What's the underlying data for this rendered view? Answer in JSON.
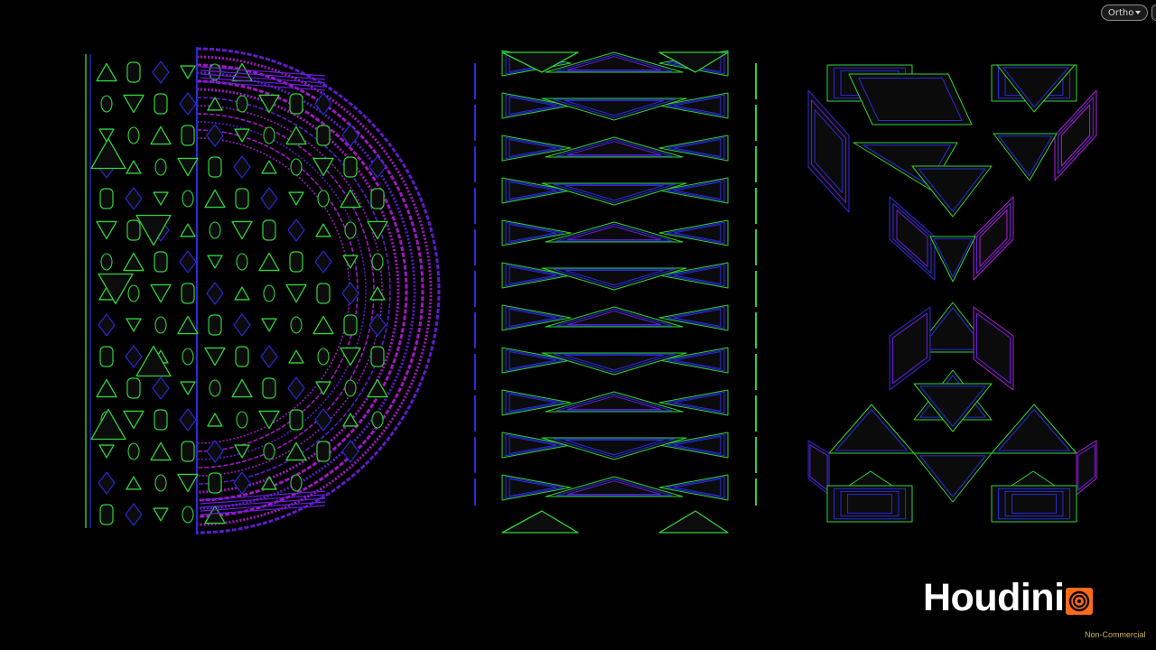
{
  "viewport": {
    "camera_menu_label": "Ortho",
    "colors": {
      "background": "#000000",
      "green": "#2fd23a",
      "blue": "#2a2ad8",
      "magenta": "#b21ad8",
      "purple": "#6a1de0"
    }
  },
  "scene": {
    "objects": [
      "letter-D-pattern",
      "column-triangles-pattern",
      "letter-X-pattern"
    ]
  },
  "watermark": {
    "brand": "Houdini",
    "license": "Non-Commercial",
    "icon": "houdini-swirl-icon",
    "icon_color": "#ff6a1a"
  }
}
